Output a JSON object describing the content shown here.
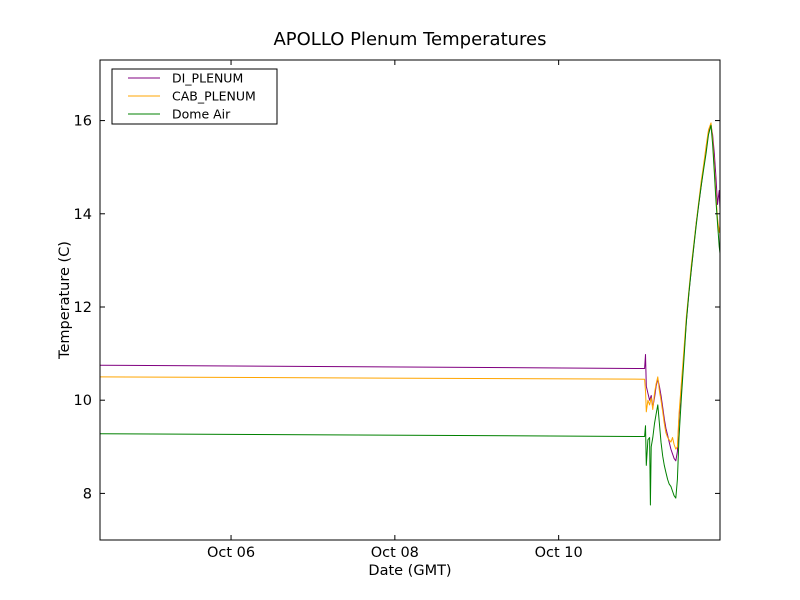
{
  "chart_data": {
    "type": "line",
    "title": "APOLLO Plenum Temperatures",
    "xlabel": "Date (GMT)",
    "ylabel": "Temperature (C)",
    "xlim": [
      4.4,
      11.97
    ],
    "ylim": [
      7.0,
      17.3
    ],
    "x_ticks": [
      {
        "value": 6,
        "label": "Oct 06"
      },
      {
        "value": 8,
        "label": "Oct 08"
      },
      {
        "value": 10,
        "label": "Oct 10"
      }
    ],
    "y_ticks": [
      {
        "value": 8,
        "label": "8"
      },
      {
        "value": 10,
        "label": "10"
      },
      {
        "value": 12,
        "label": "12"
      },
      {
        "value": 14,
        "label": "14"
      },
      {
        "value": 16,
        "label": "16"
      }
    ],
    "legend_position": "top-left",
    "series": [
      {
        "name": "DI_PLENUM",
        "color": "#800080",
        "points": [
          [
            4.4,
            10.75
          ],
          [
            11.05,
            10.68
          ],
          [
            11.06,
            10.98
          ],
          [
            11.07,
            10.3
          ],
          [
            11.09,
            10.15
          ],
          [
            11.11,
            10.0
          ],
          [
            11.13,
            10.1
          ],
          [
            11.15,
            9.85
          ],
          [
            11.17,
            10.05
          ],
          [
            11.19,
            10.3
          ],
          [
            11.21,
            10.45
          ],
          [
            11.23,
            10.3
          ],
          [
            11.25,
            10.1
          ],
          [
            11.27,
            9.85
          ],
          [
            11.29,
            9.6
          ],
          [
            11.31,
            9.4
          ],
          [
            11.33,
            9.25
          ],
          [
            11.35,
            9.1
          ],
          [
            11.37,
            8.95
          ],
          [
            11.39,
            8.85
          ],
          [
            11.41,
            8.75
          ],
          [
            11.43,
            8.7
          ],
          [
            11.45,
            8.9
          ],
          [
            11.47,
            9.6
          ],
          [
            11.5,
            10.3
          ],
          [
            11.53,
            11.0
          ],
          [
            11.56,
            11.7
          ],
          [
            11.59,
            12.3
          ],
          [
            11.62,
            12.8
          ],
          [
            11.65,
            13.3
          ],
          [
            11.68,
            13.8
          ],
          [
            11.71,
            14.2
          ],
          [
            11.74,
            14.6
          ],
          [
            11.77,
            15.0
          ],
          [
            11.8,
            15.4
          ],
          [
            11.83,
            15.75
          ],
          [
            11.86,
            15.9
          ],
          [
            11.88,
            15.7
          ],
          [
            11.9,
            15.3
          ],
          [
            11.92,
            14.8
          ],
          [
            11.94,
            14.2
          ],
          [
            11.96,
            14.5
          ],
          [
            11.97,
            14.1
          ]
        ]
      },
      {
        "name": "CAB_PLENUM",
        "color": "#ffa500",
        "points": [
          [
            4.4,
            10.5
          ],
          [
            11.05,
            10.45
          ],
          [
            11.06,
            10.2
          ],
          [
            11.07,
            9.75
          ],
          [
            11.09,
            10.0
          ],
          [
            11.11,
            9.9
          ],
          [
            11.13,
            10.05
          ],
          [
            11.15,
            9.8
          ],
          [
            11.17,
            10.15
          ],
          [
            11.19,
            10.35
          ],
          [
            11.21,
            10.5
          ],
          [
            11.23,
            10.2
          ],
          [
            11.25,
            10.0
          ],
          [
            11.27,
            9.75
          ],
          [
            11.29,
            9.5
          ],
          [
            11.31,
            9.3
          ],
          [
            11.33,
            9.2
          ],
          [
            11.35,
            9.15
          ],
          [
            11.37,
            9.1
          ],
          [
            11.39,
            9.2
          ],
          [
            11.41,
            9.05
          ],
          [
            11.43,
            8.95
          ],
          [
            11.45,
            9.0
          ],
          [
            11.47,
            9.7
          ],
          [
            11.5,
            10.4
          ],
          [
            11.53,
            11.1
          ],
          [
            11.56,
            11.8
          ],
          [
            11.59,
            12.35
          ],
          [
            11.62,
            12.9
          ],
          [
            11.65,
            13.35
          ],
          [
            11.68,
            13.8
          ],
          [
            11.71,
            14.25
          ],
          [
            11.74,
            14.7
          ],
          [
            11.77,
            15.05
          ],
          [
            11.8,
            15.45
          ],
          [
            11.83,
            15.8
          ],
          [
            11.86,
            15.95
          ],
          [
            11.88,
            15.6
          ],
          [
            11.9,
            15.0
          ],
          [
            11.92,
            14.4
          ],
          [
            11.94,
            13.9
          ],
          [
            11.96,
            13.6
          ],
          [
            11.97,
            13.75
          ]
        ]
      },
      {
        "name": "Dome Air",
        "color": "#008000",
        "points": [
          [
            4.4,
            9.28
          ],
          [
            11.05,
            9.22
          ],
          [
            11.06,
            9.45
          ],
          [
            11.07,
            8.6
          ],
          [
            11.09,
            9.15
          ],
          [
            11.11,
            9.2
          ],
          [
            11.12,
            7.75
          ],
          [
            11.13,
            9.0
          ],
          [
            11.15,
            9.2
          ],
          [
            11.17,
            9.5
          ],
          [
            11.19,
            9.7
          ],
          [
            11.21,
            9.9
          ],
          [
            11.23,
            9.5
          ],
          [
            11.25,
            9.1
          ],
          [
            11.27,
            8.8
          ],
          [
            11.29,
            8.6
          ],
          [
            11.31,
            8.45
          ],
          [
            11.33,
            8.3
          ],
          [
            11.35,
            8.2
          ],
          [
            11.37,
            8.15
          ],
          [
            11.39,
            8.05
          ],
          [
            11.41,
            7.95
          ],
          [
            11.43,
            7.9
          ],
          [
            11.45,
            8.3
          ],
          [
            11.47,
            9.2
          ],
          [
            11.5,
            10.1
          ],
          [
            11.53,
            10.9
          ],
          [
            11.56,
            11.7
          ],
          [
            11.59,
            12.3
          ],
          [
            11.62,
            12.8
          ],
          [
            11.65,
            13.3
          ],
          [
            11.68,
            13.75
          ],
          [
            11.71,
            14.2
          ],
          [
            11.74,
            14.6
          ],
          [
            11.77,
            14.95
          ],
          [
            11.8,
            15.3
          ],
          [
            11.83,
            15.7
          ],
          [
            11.86,
            15.9
          ],
          [
            11.88,
            15.5
          ],
          [
            11.9,
            14.9
          ],
          [
            11.92,
            14.3
          ],
          [
            11.94,
            13.8
          ],
          [
            11.96,
            13.3
          ],
          [
            11.97,
            13.15
          ]
        ]
      }
    ]
  }
}
